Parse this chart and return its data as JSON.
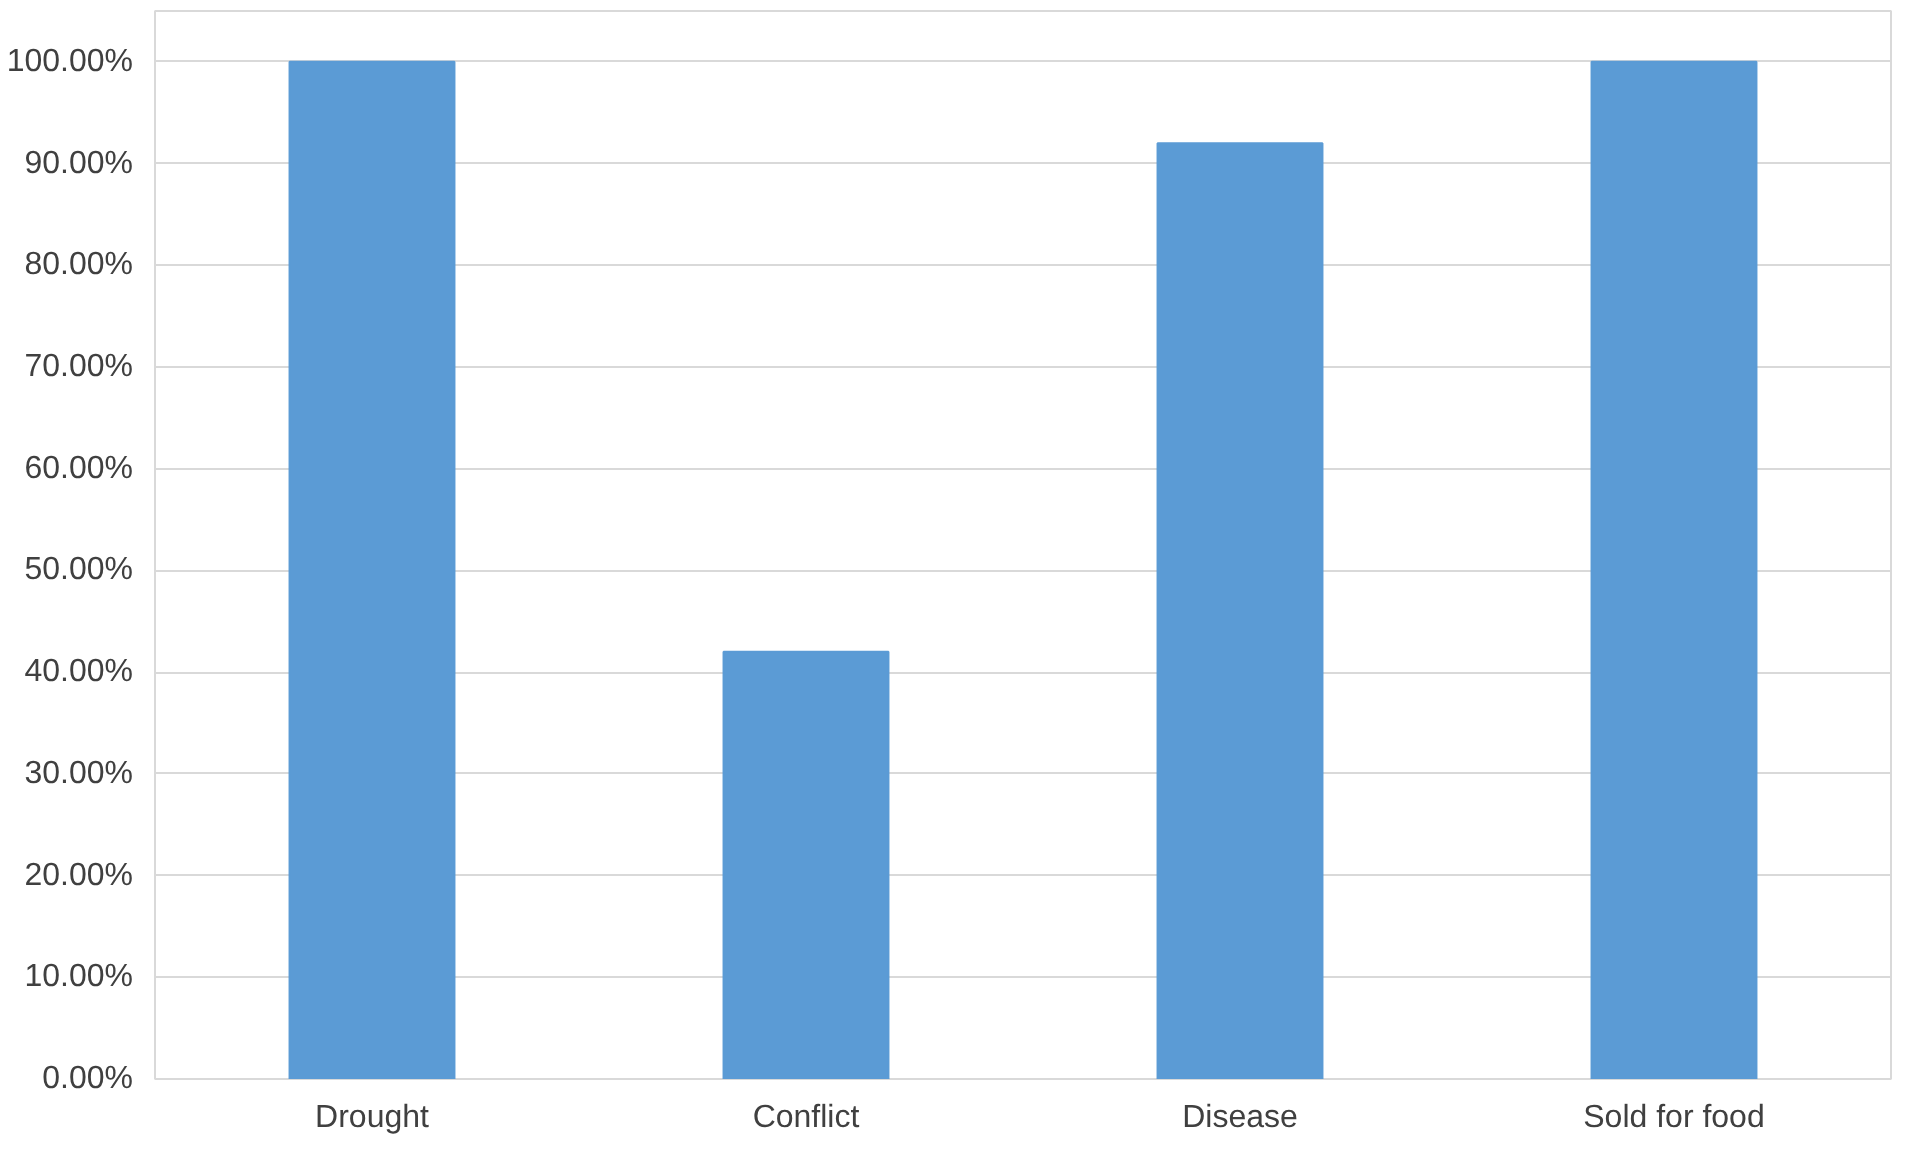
{
  "chart_data": {
    "type": "bar",
    "categories": [
      "Drought",
      "Conflict",
      "Disease",
      "Sold for food"
    ],
    "series": [
      {
        "color": "#5b9bd5",
        "values": [
          100,
          42,
          92,
          100
        ]
      }
    ],
    "ylim": [
      0,
      105
    ],
    "yticks": [
      {
        "value": 0,
        "label": "0.00%"
      },
      {
        "value": 10,
        "label": "10.00%"
      },
      {
        "value": 20,
        "label": "20.00%"
      },
      {
        "value": 30,
        "label": "30.00%"
      },
      {
        "value": 40,
        "label": "40.00%"
      },
      {
        "value": 50,
        "label": "50.00%"
      },
      {
        "value": 60,
        "label": "60.00%"
      },
      {
        "value": 70,
        "label": "70.00%"
      },
      {
        "value": 80,
        "label": "80.00%"
      },
      {
        "value": 90,
        "label": "90.00%"
      },
      {
        "value": 100,
        "label": "100.00%"
      }
    ],
    "grid": "y"
  }
}
